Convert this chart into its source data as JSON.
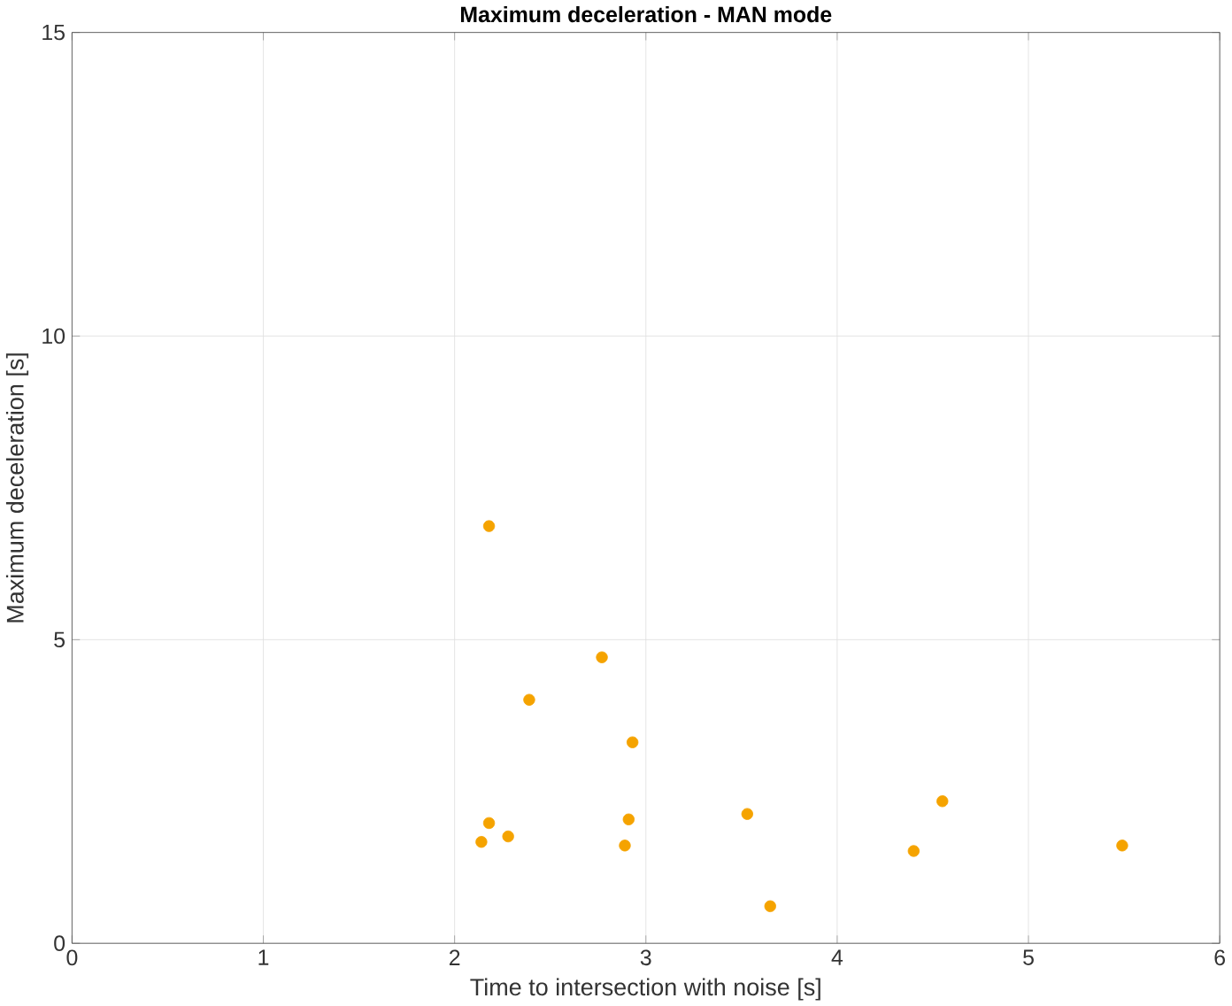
{
  "chart_data": {
    "type": "scatter",
    "title": "Maximum deceleration - MAN mode",
    "xlabel": "Time to intersection with noise [s]",
    "ylabel": "Maximum deceleration [s]",
    "x": [
      2.18,
      2.77,
      2.39,
      2.93,
      2.18,
      2.14,
      2.28,
      2.91,
      2.89,
      3.53,
      3.65,
      4.55,
      4.4,
      5.49
    ],
    "series": [
      {
        "color": "#f5a300",
        "values": [
          6.87,
          4.71,
          4.01,
          3.31,
          1.98,
          1.67,
          1.76,
          2.04,
          1.61,
          2.13,
          0.61,
          2.34,
          1.52,
          1.61
        ]
      }
    ],
    "xlim": [
      0,
      6
    ],
    "ylim": [
      0,
      15
    ],
    "xticks": [
      0,
      1,
      2,
      3,
      4,
      5,
      6
    ],
    "yticks": [
      0,
      5,
      10,
      15
    ],
    "grid": true
  }
}
